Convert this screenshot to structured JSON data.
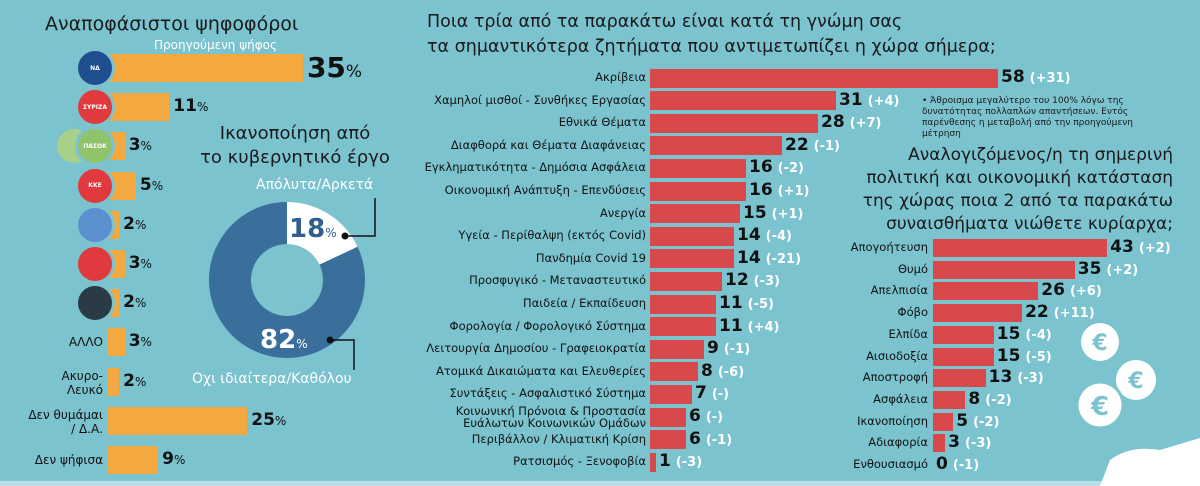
{
  "chart_data": [
    {
      "type": "bar",
      "orientation": "horizontal",
      "title": "Αναποφάσιστοι ψηφοφόροι",
      "subtitle": "Προηγούμενη ψήφος",
      "unit": "%",
      "categories": [
        {
          "label": "",
          "logo": "nd-logo",
          "logo_text": "ΝΔ",
          "color": "#1f4f8f"
        },
        {
          "label": "",
          "logo": "syriza-logo",
          "logo_text": "ΣΥΡΙΖΑ",
          "color": "#e03a3e"
        },
        {
          "label": "",
          "logo": "pasok-kinal-logo",
          "logo_text": "ΠΑΣΟΚ",
          "color": "#8fc46b"
        },
        {
          "label": "",
          "logo": "kke-logo",
          "logo_text": "ΚΚΕ",
          "color": "#e03a3e"
        },
        {
          "label": "",
          "logo": "elliniki-lysi-logo",
          "logo_text": "",
          "color": "#5b8fd0"
        },
        {
          "label": "",
          "logo": "mera25-logo",
          "logo_text": "",
          "color": "#e03a3e"
        },
        {
          "label": "",
          "logo": "meander-logo",
          "logo_text": "",
          "color": "#2b3b45"
        },
        {
          "label": "ΑΛΛΟ"
        },
        {
          "label": "Ακυρο-\nΛευκό"
        },
        {
          "label": "Δεν θυμάμαι\n/ Δ.Α."
        },
        {
          "label": "Δεν ψήφισα"
        }
      ],
      "values": [
        35,
        11,
        3,
        5,
        2,
        3,
        2,
        3,
        2,
        25,
        9
      ],
      "bar_color": "#f4a940"
    },
    {
      "type": "pie",
      "donut": true,
      "title": "Ικανοποίηση από\nτο κυβερνητικό έργο",
      "slices": [
        {
          "label": "Απόλυτα/Αρκετά",
          "value": 18,
          "color": "#ffffff"
        },
        {
          "label": "Οχι ιδιαίτερα/Καθόλου",
          "value": 82,
          "color": "#3a6f9c"
        }
      ],
      "unit": "%"
    },
    {
      "type": "bar",
      "orientation": "horizontal",
      "title": "Ποια τρία από τα παρακάτω είναι κατά τη γνώμη σας\nτα σημαντικότερα ζητήματα που αντιμετωπίζει η χώρα σήμερα;",
      "categories": [
        "Ακρίβεια",
        "Χαμηλοί μισθοί - Συνθήκες Εργασίας",
        "Εθνικά Θέματα",
        "Διαφθορά και Θέματα Διαφάνειας",
        "Εγκληματικότητα - Δημόσια Ασφάλεια",
        "Οικονομική Ανάπτυξη - Επενδύσεις",
        "Ανεργία",
        "Υγεία - Περίθαλψη (εκτός Covid)",
        "Πανδημία Covid 19",
        "Προσφυγικό - Μεταναστευτικό",
        "Παιδεία / Εκπαίδευση",
        "Φορολογία / Φορολογικό Σύστημα",
        "Λειτουργία Δημοσίου - Γραφειοκρατία",
        "Ατομικά Δικαιώματα και Ελευθερίες",
        "Συντάξεις - Ασφαλιστικό Σύστημα",
        "Κοινωνική Πρόνοια & Προστασία\nΕυάλωτων Κοινωνικών Ομάδων",
        "Περιβάλλον / Κλιματική Κρίση",
        "Ρατσισμός - Ξενοφοβία"
      ],
      "values": [
        58,
        31,
        28,
        22,
        16,
        16,
        15,
        14,
        14,
        12,
        11,
        11,
        9,
        8,
        7,
        6,
        6,
        1
      ],
      "changes": [
        "(+31)",
        "(+4)",
        "(+7)",
        "(-1)",
        "(-2)",
        "(+1)",
        "(+1)",
        "(-4)",
        "(-21)",
        "(-3)",
        "(-5)",
        "(+4)",
        "(-1)",
        "(-6)",
        "(-)",
        "(-)",
        "(-1)",
        "(-3)"
      ],
      "bar_color": "#d9494b",
      "footnote": "• Άθροισμα μεγαλύτερο του 100% λόγω της δυνατότητας πολλαπλών απαντήσεων. Εντός παρένθεσης η μεταβολή από την προηγούμενη μέτρηση"
    },
    {
      "type": "bar",
      "orientation": "horizontal",
      "title": "Αναλογιζόμενος/η τη σημερινή\nπολιτική και οικονομική κατάσταση\nτης χώρας ποια 2 από τα παρακάτω\nσυναισθήματα νιώθετε κυρίαρχα;",
      "categories": [
        "Απογοήτευση",
        "Θυμό",
        "Απελπισία",
        "Φόβο",
        "Ελπίδα",
        "Αισιοδοξία",
        "Αποστροφή",
        "Ασφάλεια",
        "Ικανοποίηση",
        "Αδιαφορία",
        "Ενθουσιασμό"
      ],
      "values": [
        43,
        35,
        26,
        22,
        15,
        15,
        13,
        8,
        5,
        3,
        0
      ],
      "changes": [
        "(+2)",
        "(+2)",
        "(+6)",
        "(+11)",
        "(-4)",
        "(-5)",
        "(-3)",
        "(-2)",
        "(-2)",
        "(-3)",
        "(-1)"
      ],
      "bar_color": "#d9494b"
    }
  ],
  "decoration": {
    "icons": [
      "euro-coin-icon",
      "euro-coin-icon",
      "euro-coin-icon",
      "hand-icon"
    ],
    "symbol": "€"
  }
}
